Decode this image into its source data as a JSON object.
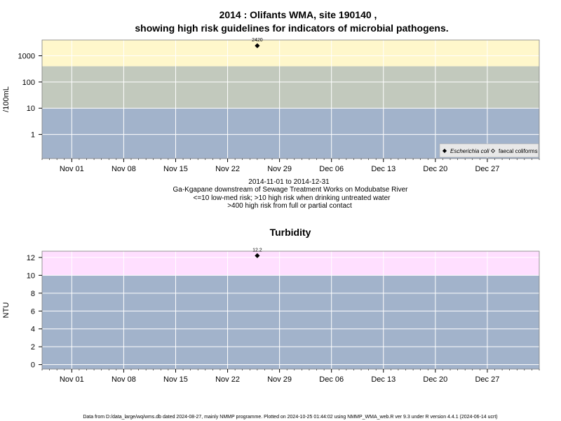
{
  "colors": {
    "band_low": "#a2b3cb",
    "band_mid": "#c2c9bd",
    "band_high_ecoli": "#fff7cb",
    "band_high_turb": "#ffdfff",
    "grid": "#ffffff",
    "frame": "#808080",
    "point": "#000000"
  },
  "chart_data": [
    {
      "type": "scatter",
      "title_line1": "2014 : Olifants WMA, site 190140 ,",
      "title_line2": "showing high risk guidelines for indicators of microbial pathogens.",
      "ylabel": "/100mL",
      "yscale": "log",
      "ylim": [
        0.12,
        4000
      ],
      "yticks": [
        1,
        10,
        100,
        1000
      ],
      "ytick_labels": [
        "1",
        "10",
        "100",
        "1000"
      ],
      "xlim": [
        "2014-10-28",
        "2015-01-03"
      ],
      "xticks": [
        "2014-11-01",
        "2014-11-08",
        "2014-11-15",
        "2014-11-22",
        "2014-11-29",
        "2014-12-06",
        "2014-12-13",
        "2014-12-20",
        "2014-12-27"
      ],
      "xtick_labels": [
        "Nov 01",
        "Nov 08",
        "Nov 15",
        "Nov 22",
        "Nov 29",
        "Dec 06",
        "Dec 13",
        "Dec 20",
        "Dec 27"
      ],
      "bands": [
        {
          "from": 0.12,
          "to": 10,
          "color_key": "band_low"
        },
        {
          "from": 10,
          "to": 400,
          "color_key": "band_mid"
        },
        {
          "from": 400,
          "to": 4000,
          "color_key": "band_high_ecoli"
        }
      ],
      "series": [
        {
          "name": "Escherichia coli",
          "marker": "filled",
          "points": [
            {
              "x": "2014-11-26",
              "y": 2420,
              "label": "2420"
            }
          ]
        },
        {
          "name": "faecal coliforms",
          "marker": "open",
          "points": []
        }
      ],
      "legend_position": "bottom-right",
      "grid": true,
      "notes": [
        "2014-11-01 to 2014-12-31",
        "Ga-Kgapane downstream of Sewage Treatment Works on Modubatse River",
        "<=10 low-med risk; >10 high risk when drinking untreated water",
        ">400 high risk from full or partial contact"
      ]
    },
    {
      "type": "scatter",
      "title": "Turbidity",
      "ylabel": "NTU",
      "yscale": "linear",
      "ylim": [
        -0.5,
        12.7
      ],
      "yticks": [
        0,
        2,
        4,
        6,
        8,
        10,
        12
      ],
      "ytick_labels": [
        "0",
        "2",
        "4",
        "6",
        "8",
        "10",
        "12"
      ],
      "xlim": [
        "2014-10-28",
        "2015-01-03"
      ],
      "xticks": [
        "2014-11-01",
        "2014-11-08",
        "2014-11-15",
        "2014-11-22",
        "2014-11-29",
        "2014-12-06",
        "2014-12-13",
        "2014-12-20",
        "2014-12-27"
      ],
      "xtick_labels": [
        "Nov 01",
        "Nov 08",
        "Nov 15",
        "Nov 22",
        "Nov 29",
        "Dec 06",
        "Dec 13",
        "Dec 20",
        "Dec 27"
      ],
      "bands": [
        {
          "from": -0.5,
          "to": 10,
          "color_key": "band_low"
        },
        {
          "from": 10,
          "to": 12.7,
          "color_key": "band_high_turb"
        }
      ],
      "series": [
        {
          "name": "Turbidity",
          "marker": "filled",
          "points": [
            {
              "x": "2014-11-26",
              "y": 12.2,
              "label": "12.2"
            }
          ]
        }
      ],
      "grid": true
    }
  ],
  "footer": "Data from D:/data_large/wq/wms.db dated 2024-08-27, mainly NMMP programme. Plotted on 2024-10-25 01:44:02 using NMMP_WMA_web.R ver 9.3 under R version 4.4.1 (2024-06-14 ucrt)"
}
